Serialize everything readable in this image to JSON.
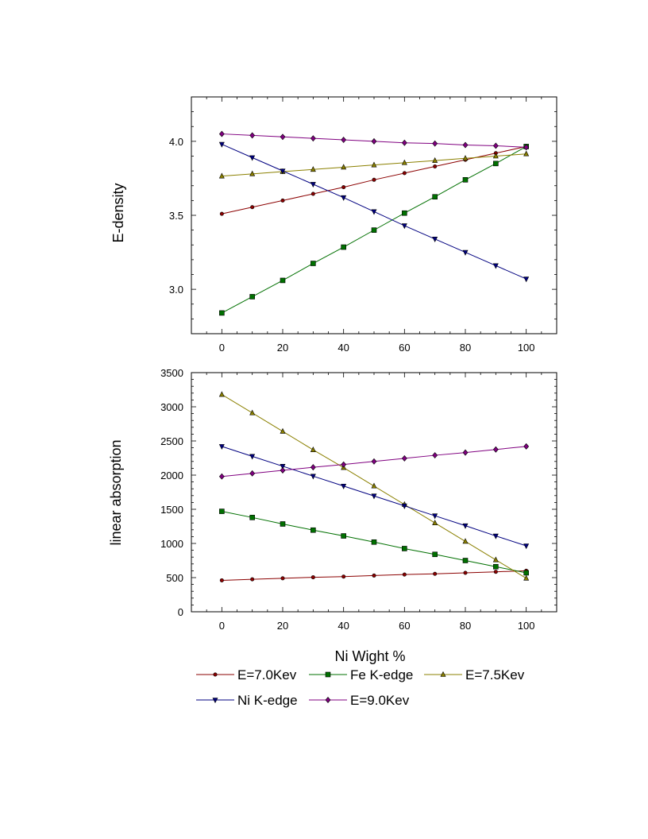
{
  "xlabel": "Ni Wight %",
  "chart_data": [
    {
      "type": "line",
      "ylabel": "E-density",
      "xlim": [
        -10,
        110
      ],
      "ylim": [
        2.7,
        4.3
      ],
      "xticks": [
        0,
        20,
        40,
        60,
        80,
        100
      ],
      "yticks": [
        3.0,
        3.5,
        4.0
      ],
      "ytick_labels": [
        "3.0",
        "3.5",
        "4.0"
      ],
      "x": [
        0,
        10,
        20,
        30,
        40,
        50,
        60,
        70,
        80,
        90,
        100
      ],
      "series": [
        {
          "name": "E=7.0Kev",
          "color": "#8b0000",
          "marker": "circle",
          "values": [
            3.51,
            3.555,
            3.6,
            3.645,
            3.69,
            3.74,
            3.785,
            3.83,
            3.875,
            3.92,
            3.965
          ]
        },
        {
          "name": "Fe K-edge",
          "color": "#007000",
          "marker": "square",
          "values": [
            2.84,
            2.95,
            3.06,
            3.175,
            3.285,
            3.4,
            3.515,
            3.625,
            3.74,
            3.85,
            3.965
          ]
        },
        {
          "name": "E=7.5Kev",
          "color": "#8b8000",
          "marker": "triangle-up",
          "values": [
            3.765,
            3.78,
            3.795,
            3.81,
            3.825,
            3.84,
            3.855,
            3.87,
            3.885,
            3.9,
            3.915
          ]
        },
        {
          "name": "Ni K-edge",
          "color": "#000080",
          "marker": "triangle-down",
          "values": [
            3.98,
            3.89,
            3.8,
            3.71,
            3.62,
            3.525,
            3.43,
            3.34,
            3.25,
            3.16,
            3.07
          ]
        },
        {
          "name": "E=9.0Kev",
          "color": "#800080",
          "marker": "diamond",
          "values": [
            4.05,
            4.04,
            4.03,
            4.02,
            4.01,
            4.0,
            3.99,
            3.985,
            3.975,
            3.97,
            3.96
          ]
        }
      ]
    },
    {
      "type": "line",
      "ylabel": "linear absorption",
      "xlim": [
        -10,
        110
      ],
      "ylim": [
        0,
        3500
      ],
      "xticks": [
        0,
        20,
        40,
        60,
        80,
        100
      ],
      "yticks": [
        0,
        500,
        1000,
        1500,
        2000,
        2500,
        3000,
        3500
      ],
      "ytick_labels": [
        "0",
        "500",
        "1000",
        "1500",
        "2000",
        "2500",
        "3000",
        "3500"
      ],
      "x": [
        0,
        10,
        20,
        30,
        40,
        50,
        60,
        70,
        80,
        90,
        100
      ],
      "series": [
        {
          "name": "E=7.0Kev",
          "color": "#8b0000",
          "marker": "circle",
          "values": [
            460,
            475,
            490,
            505,
            515,
            530,
            545,
            555,
            570,
            585,
            600
          ]
        },
        {
          "name": "Fe K-edge",
          "color": "#007000",
          "marker": "square",
          "values": [
            1470,
            1380,
            1285,
            1195,
            1110,
            1020,
            925,
            840,
            750,
            660,
            570
          ]
        },
        {
          "name": "E=7.5Kev",
          "color": "#8b8000",
          "marker": "triangle-up",
          "values": [
            3180,
            2910,
            2640,
            2370,
            2110,
            1840,
            1570,
            1300,
            1030,
            760,
            490
          ]
        },
        {
          "name": "Ni K-edge",
          "color": "#000080",
          "marker": "triangle-down",
          "values": [
            2420,
            2275,
            2130,
            1985,
            1840,
            1695,
            1550,
            1405,
            1260,
            1110,
            965
          ]
        },
        {
          "name": "E=9.0Kev",
          "color": "#800080",
          "marker": "diamond",
          "values": [
            1980,
            2025,
            2070,
            2115,
            2155,
            2200,
            2245,
            2290,
            2330,
            2375,
            2420
          ]
        }
      ]
    }
  ],
  "legend": {
    "placement": "bottom",
    "items": [
      {
        "label": "E=7.0Kev",
        "color": "#8b0000",
        "marker": "circle"
      },
      {
        "label": "Fe K-edge",
        "color": "#007000",
        "marker": "square"
      },
      {
        "label": "E=7.5Kev",
        "color": "#8b8000",
        "marker": "triangle-up"
      },
      {
        "label": "Ni K-edge",
        "color": "#000080",
        "marker": "triangle-down"
      },
      {
        "label": "E=9.0Kev",
        "color": "#800080",
        "marker": "diamond"
      }
    ]
  }
}
